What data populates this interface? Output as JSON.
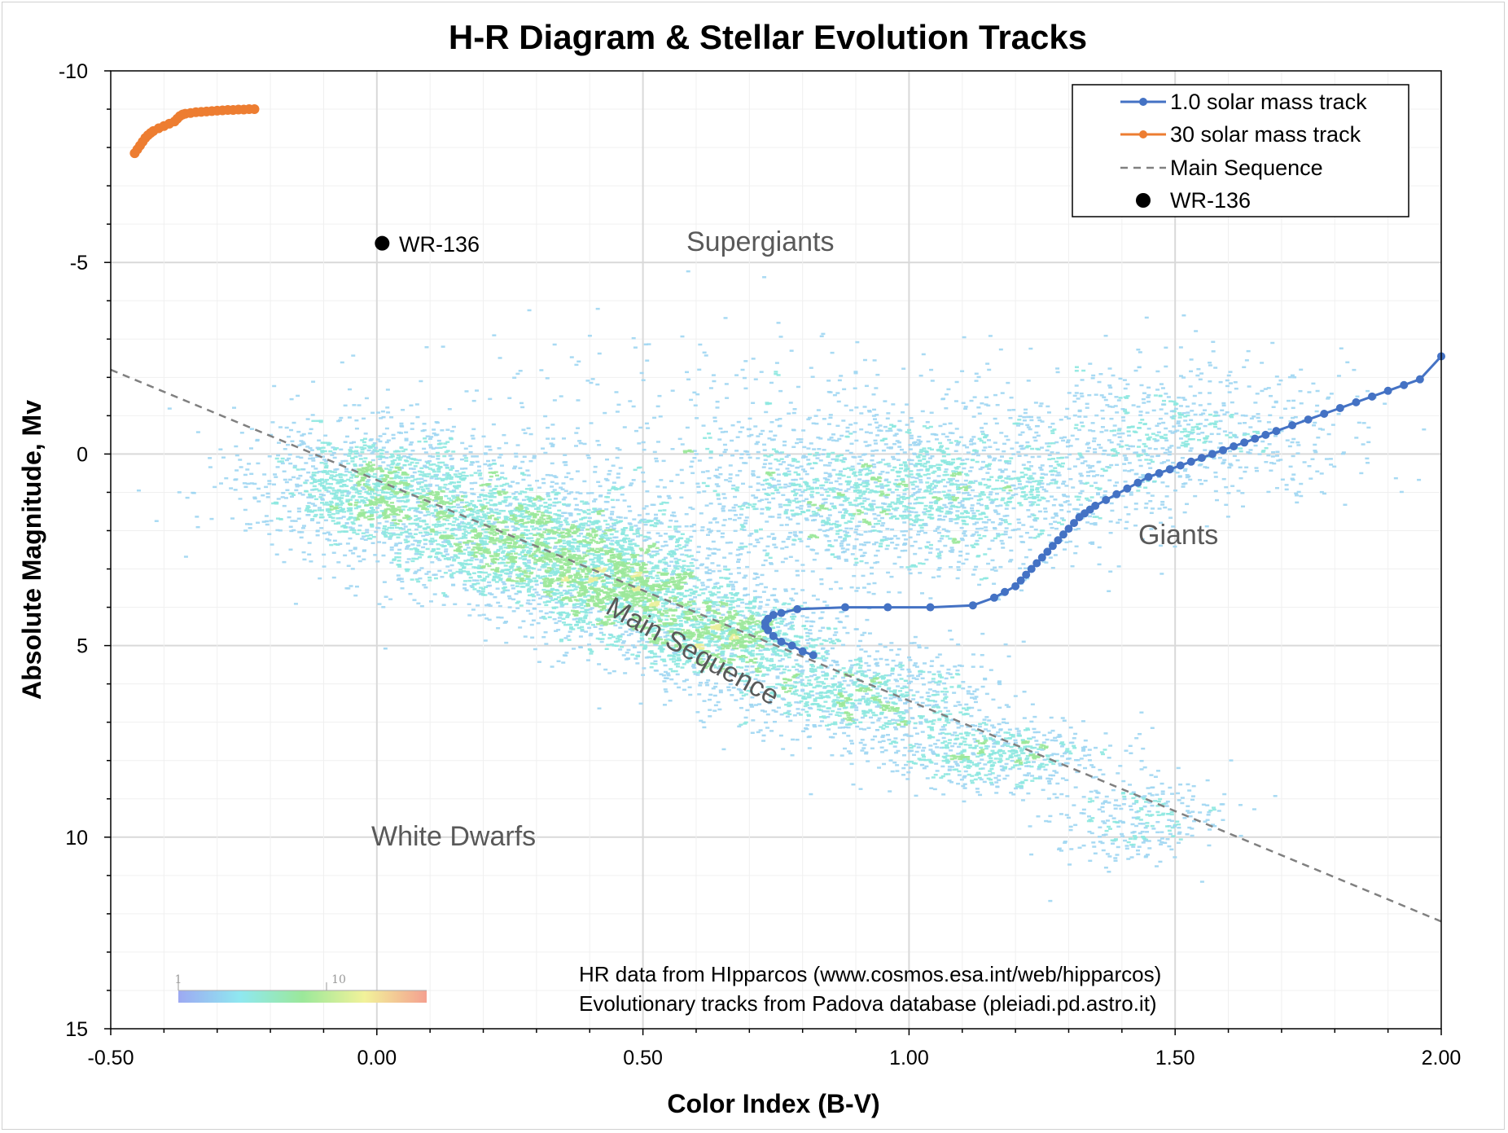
{
  "chart_data": {
    "type": "scatter",
    "title": "H-R Diagram & Stellar Evolution Tracks",
    "xlabel": "Color Index (B-V)",
    "ylabel": "Absolute Magnitude, Mv",
    "xlim": [
      -0.5,
      2.0
    ],
    "ylim": [
      -10,
      15
    ],
    "y_inverted": true,
    "grid": true,
    "x_ticks": [
      "-0.50",
      "0.00",
      "0.50",
      "1.00",
      "1.50",
      "2.00"
    ],
    "y_ticks": [
      "-10",
      "-5",
      "0",
      "5",
      "10",
      "15"
    ],
    "legend_position": "top-right",
    "series": [
      {
        "name": "1.0 solar mass track",
        "kind": "line-markers",
        "color": "#4472c4",
        "x": [
          0.82,
          0.8,
          0.78,
          0.76,
          0.745,
          0.735,
          0.73,
          0.73,
          0.735,
          0.745,
          0.76,
          0.79,
          0.88,
          0.96,
          1.04,
          1.12,
          1.16,
          1.18,
          1.2,
          1.21,
          1.22,
          1.23,
          1.24,
          1.25,
          1.26,
          1.27,
          1.28,
          1.29,
          1.3,
          1.31,
          1.32,
          1.33,
          1.34,
          1.35,
          1.37,
          1.39,
          1.41,
          1.43,
          1.45,
          1.47,
          1.49,
          1.51,
          1.53,
          1.55,
          1.57,
          1.59,
          1.61,
          1.63,
          1.65,
          1.67,
          1.69,
          1.72,
          1.75,
          1.78,
          1.81,
          1.84,
          1.87,
          1.9,
          1.93,
          1.96,
          2.0
        ],
        "y": [
          5.25,
          5.15,
          5.0,
          4.9,
          4.75,
          4.6,
          4.5,
          4.4,
          4.3,
          4.2,
          4.15,
          4.05,
          4.0,
          4.0,
          4.0,
          3.95,
          3.75,
          3.6,
          3.45,
          3.3,
          3.15,
          3.0,
          2.85,
          2.7,
          2.55,
          2.4,
          2.25,
          2.1,
          1.95,
          1.8,
          1.65,
          1.55,
          1.45,
          1.35,
          1.2,
          1.05,
          0.9,
          0.75,
          0.6,
          0.5,
          0.4,
          0.3,
          0.2,
          0.1,
          0.0,
          -0.1,
          -0.2,
          -0.3,
          -0.4,
          -0.5,
          -0.6,
          -0.75,
          -0.9,
          -1.05,
          -1.2,
          -1.35,
          -1.5,
          -1.65,
          -1.8,
          -1.95,
          -2.55
        ]
      },
      {
        "name": "30 solar mass track",
        "kind": "line-markers",
        "color": "#ed7d31",
        "x": [
          -0.455,
          -0.45,
          -0.445,
          -0.44,
          -0.435,
          -0.43,
          -0.425,
          -0.42,
          -0.41,
          -0.4,
          -0.39,
          -0.38,
          -0.375,
          -0.37,
          -0.365,
          -0.36,
          -0.35,
          -0.34,
          -0.33,
          -0.32,
          -0.31,
          -0.3,
          -0.29,
          -0.28,
          -0.27,
          -0.26,
          -0.25,
          -0.24,
          -0.23
        ],
        "y": [
          -7.85,
          -7.95,
          -8.05,
          -8.15,
          -8.25,
          -8.32,
          -8.38,
          -8.43,
          -8.5,
          -8.56,
          -8.62,
          -8.68,
          -8.75,
          -8.82,
          -8.86,
          -8.88,
          -8.9,
          -8.92,
          -8.93,
          -8.94,
          -8.95,
          -8.96,
          -8.97,
          -8.98,
          -8.98,
          -8.99,
          -8.99,
          -9.0,
          -9.0
        ]
      },
      {
        "name": "Main Sequence",
        "kind": "dashed-line",
        "color": "#808080",
        "x": [
          -0.5,
          2.0
        ],
        "y": [
          -2.2,
          12.2
        ]
      },
      {
        "name": "WR-136",
        "kind": "point",
        "color": "#000000",
        "x": [
          0.01
        ],
        "y": [
          -5.5
        ]
      }
    ],
    "density_regions": [
      {
        "cx": 0.0,
        "cy": 0.8,
        "sx": 0.12,
        "sy": 0.8,
        "count": 1400
      },
      {
        "cx": 0.25,
        "cy": 2.2,
        "sx": 0.12,
        "sy": 0.8,
        "count": 1600
      },
      {
        "cx": 0.45,
        "cy": 3.4,
        "sx": 0.1,
        "sy": 0.7,
        "count": 1500
      },
      {
        "cx": 0.65,
        "cy": 4.7,
        "sx": 0.1,
        "sy": 0.6,
        "count": 1200
      },
      {
        "cx": 0.9,
        "cy": 6.3,
        "sx": 0.12,
        "sy": 0.6,
        "count": 900
      },
      {
        "cx": 1.15,
        "cy": 7.8,
        "sx": 0.1,
        "sy": 0.5,
        "count": 600
      },
      {
        "cx": 1.42,
        "cy": 9.5,
        "sx": 0.08,
        "sy": 0.6,
        "count": 300
      },
      {
        "cx": 1.0,
        "cy": 1.0,
        "sx": 0.2,
        "sy": 1.0,
        "count": 1800
      },
      {
        "cx": 1.5,
        "cy": -0.6,
        "sx": 0.17,
        "sy": 0.9,
        "count": 700
      },
      {
        "cx": 0.7,
        "cy": 0.5,
        "sx": 0.35,
        "sy": 1.8,
        "count": 700
      }
    ],
    "colorbar": {
      "tick_labels": [
        "1",
        "10"
      ]
    },
    "annotations": {
      "supergiants": "Supergiants",
      "giants": "Giants",
      "main_sequence": "Main Sequence",
      "white_dwarfs": "White Dwarfs",
      "wr136": "WR-136",
      "credit_line1": "HR data from HIpparcos (www.cosmos.esa.int/web/hipparcos)",
      "credit_line2": "Evolutionary tracks from Padova database (pleiadi.pd.astro.it)"
    }
  }
}
